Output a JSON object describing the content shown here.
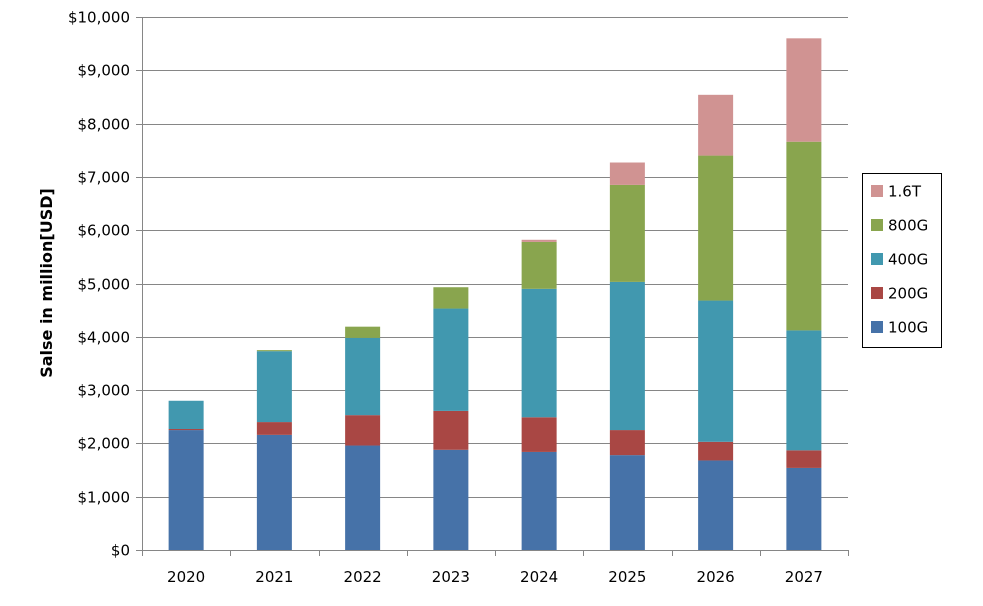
{
  "chart_data": {
    "type": "bar",
    "stacked": true,
    "title": "",
    "xlabel": "",
    "ylabel": "Salse in million[USD]",
    "ylim": [
      0,
      10000
    ],
    "yticks": [
      0,
      1000,
      2000,
      3000,
      4000,
      5000,
      6000,
      7000,
      8000,
      9000,
      10000
    ],
    "ytick_labels": [
      "$0",
      "$1,000",
      "$2,000",
      "$3,000",
      "$4,000",
      "$5,000",
      "$6,000",
      "$7,000",
      "$8,000",
      "$9,000",
      "$10,000"
    ],
    "grid": true,
    "legend_position": "right",
    "categories": [
      "2020",
      "2021",
      "2022",
      "2023",
      "2024",
      "2025",
      "2026",
      "2027"
    ],
    "series": [
      {
        "name": "100G",
        "color": "#4672A8",
        "values": [
          2250,
          2160,
          1960,
          1880,
          1840,
          1780,
          1680,
          1540
        ]
      },
      {
        "name": "200G",
        "color": "#A94744",
        "values": [
          20,
          240,
          570,
          730,
          650,
          470,
          350,
          330
        ]
      },
      {
        "name": "400G",
        "color": "#4198AF",
        "values": [
          530,
          1330,
          1450,
          1920,
          2410,
          2780,
          2650,
          2250
        ]
      },
      {
        "name": "800G",
        "color": "#89A54E",
        "values": [
          0,
          20,
          210,
          400,
          880,
          1820,
          2720,
          3540
        ]
      },
      {
        "name": "1.6T",
        "color": "#D09392",
        "values": [
          0,
          0,
          0,
          0,
          40,
          420,
          1140,
          1940
        ]
      }
    ],
    "legend_order": [
      "1.6T",
      "800G",
      "400G",
      "200G",
      "100G"
    ]
  }
}
